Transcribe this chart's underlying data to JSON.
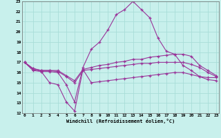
{
  "xlabel": "Windchill (Refroidissement éolien,°C)",
  "bg_color": "#c8f0ec",
  "grid_color": "#a8ddd8",
  "line_color": "#993399",
  "xmin": 0,
  "xmax": 23,
  "ymin": 12,
  "ymax": 23,
  "xticks": [
    0,
    1,
    2,
    3,
    4,
    5,
    6,
    7,
    8,
    9,
    10,
    11,
    12,
    13,
    14,
    15,
    16,
    17,
    18,
    19,
    20,
    21,
    22,
    23
  ],
  "yticks": [
    12,
    13,
    14,
    15,
    16,
    17,
    18,
    19,
    20,
    21,
    22,
    23
  ],
  "line1": [
    17.0,
    16.3,
    16.1,
    16.1,
    16.0,
    14.8,
    13.1,
    16.5,
    18.3,
    19.0,
    20.2,
    21.7,
    22.2,
    23.0,
    22.2,
    21.4,
    19.4,
    18.1,
    17.8,
    16.7,
    16.2,
    15.6,
    15.5,
    15.5
  ],
  "line2": [
    17.0,
    16.4,
    16.2,
    16.2,
    16.2,
    15.7,
    15.2,
    16.3,
    16.5,
    16.7,
    16.8,
    17.0,
    17.1,
    17.3,
    17.3,
    17.5,
    17.6,
    17.7,
    17.8,
    17.8,
    17.6,
    16.7,
    16.2,
    15.7
  ],
  "line3": [
    17.0,
    16.4,
    16.2,
    16.2,
    16.1,
    15.6,
    15.0,
    16.2,
    16.3,
    16.4,
    16.5,
    16.6,
    16.7,
    16.8,
    16.9,
    16.9,
    17.0,
    17.0,
    17.0,
    17.0,
    16.8,
    16.5,
    16.0,
    15.6
  ],
  "line4": [
    17.0,
    16.2,
    16.1,
    15.0,
    14.8,
    13.1,
    12.2,
    16.3,
    15.0,
    15.1,
    15.2,
    15.3,
    15.4,
    15.5,
    15.6,
    15.7,
    15.8,
    15.9,
    16.0,
    16.0,
    15.8,
    15.6,
    15.3,
    15.2
  ]
}
